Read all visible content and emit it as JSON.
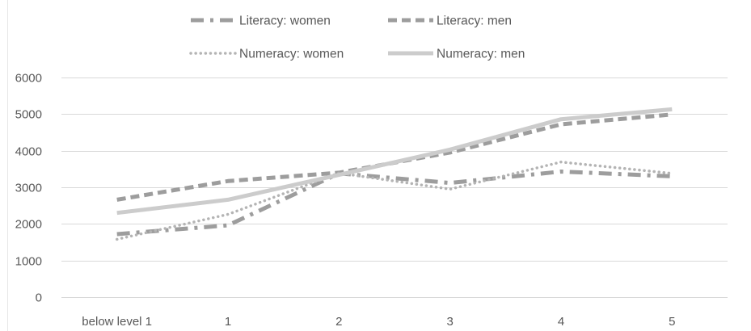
{
  "chart_data": {
    "type": "line",
    "categories": [
      "below level 1",
      "1",
      "2",
      "3",
      "4",
      "5"
    ],
    "ylim": [
      0,
      6000
    ],
    "yticks": [
      0,
      1000,
      2000,
      3000,
      4000,
      5000,
      6000
    ],
    "grid": true,
    "legend_position": "top",
    "series": [
      {
        "name": "Literacy: women",
        "values": [
          1720,
          1960,
          3380,
          3120,
          3430,
          3300
        ],
        "color": "#9d9d9d",
        "dash": "long-dash-dot"
      },
      {
        "name": "Literacy: men",
        "values": [
          2660,
          3170,
          3400,
          3950,
          4720,
          4990
        ],
        "color": "#9d9d9d",
        "dash": "dash"
      },
      {
        "name": "Numeracy:  women",
        "values": [
          1580,
          2260,
          3390,
          2950,
          3690,
          3380
        ],
        "color": "#b4b4b4",
        "dash": "dot"
      },
      {
        "name": "Numeracy:  men",
        "values": [
          2300,
          2660,
          3340,
          4030,
          4860,
          5130
        ],
        "color": "#cccccc",
        "dash": "solid"
      }
    ]
  }
}
